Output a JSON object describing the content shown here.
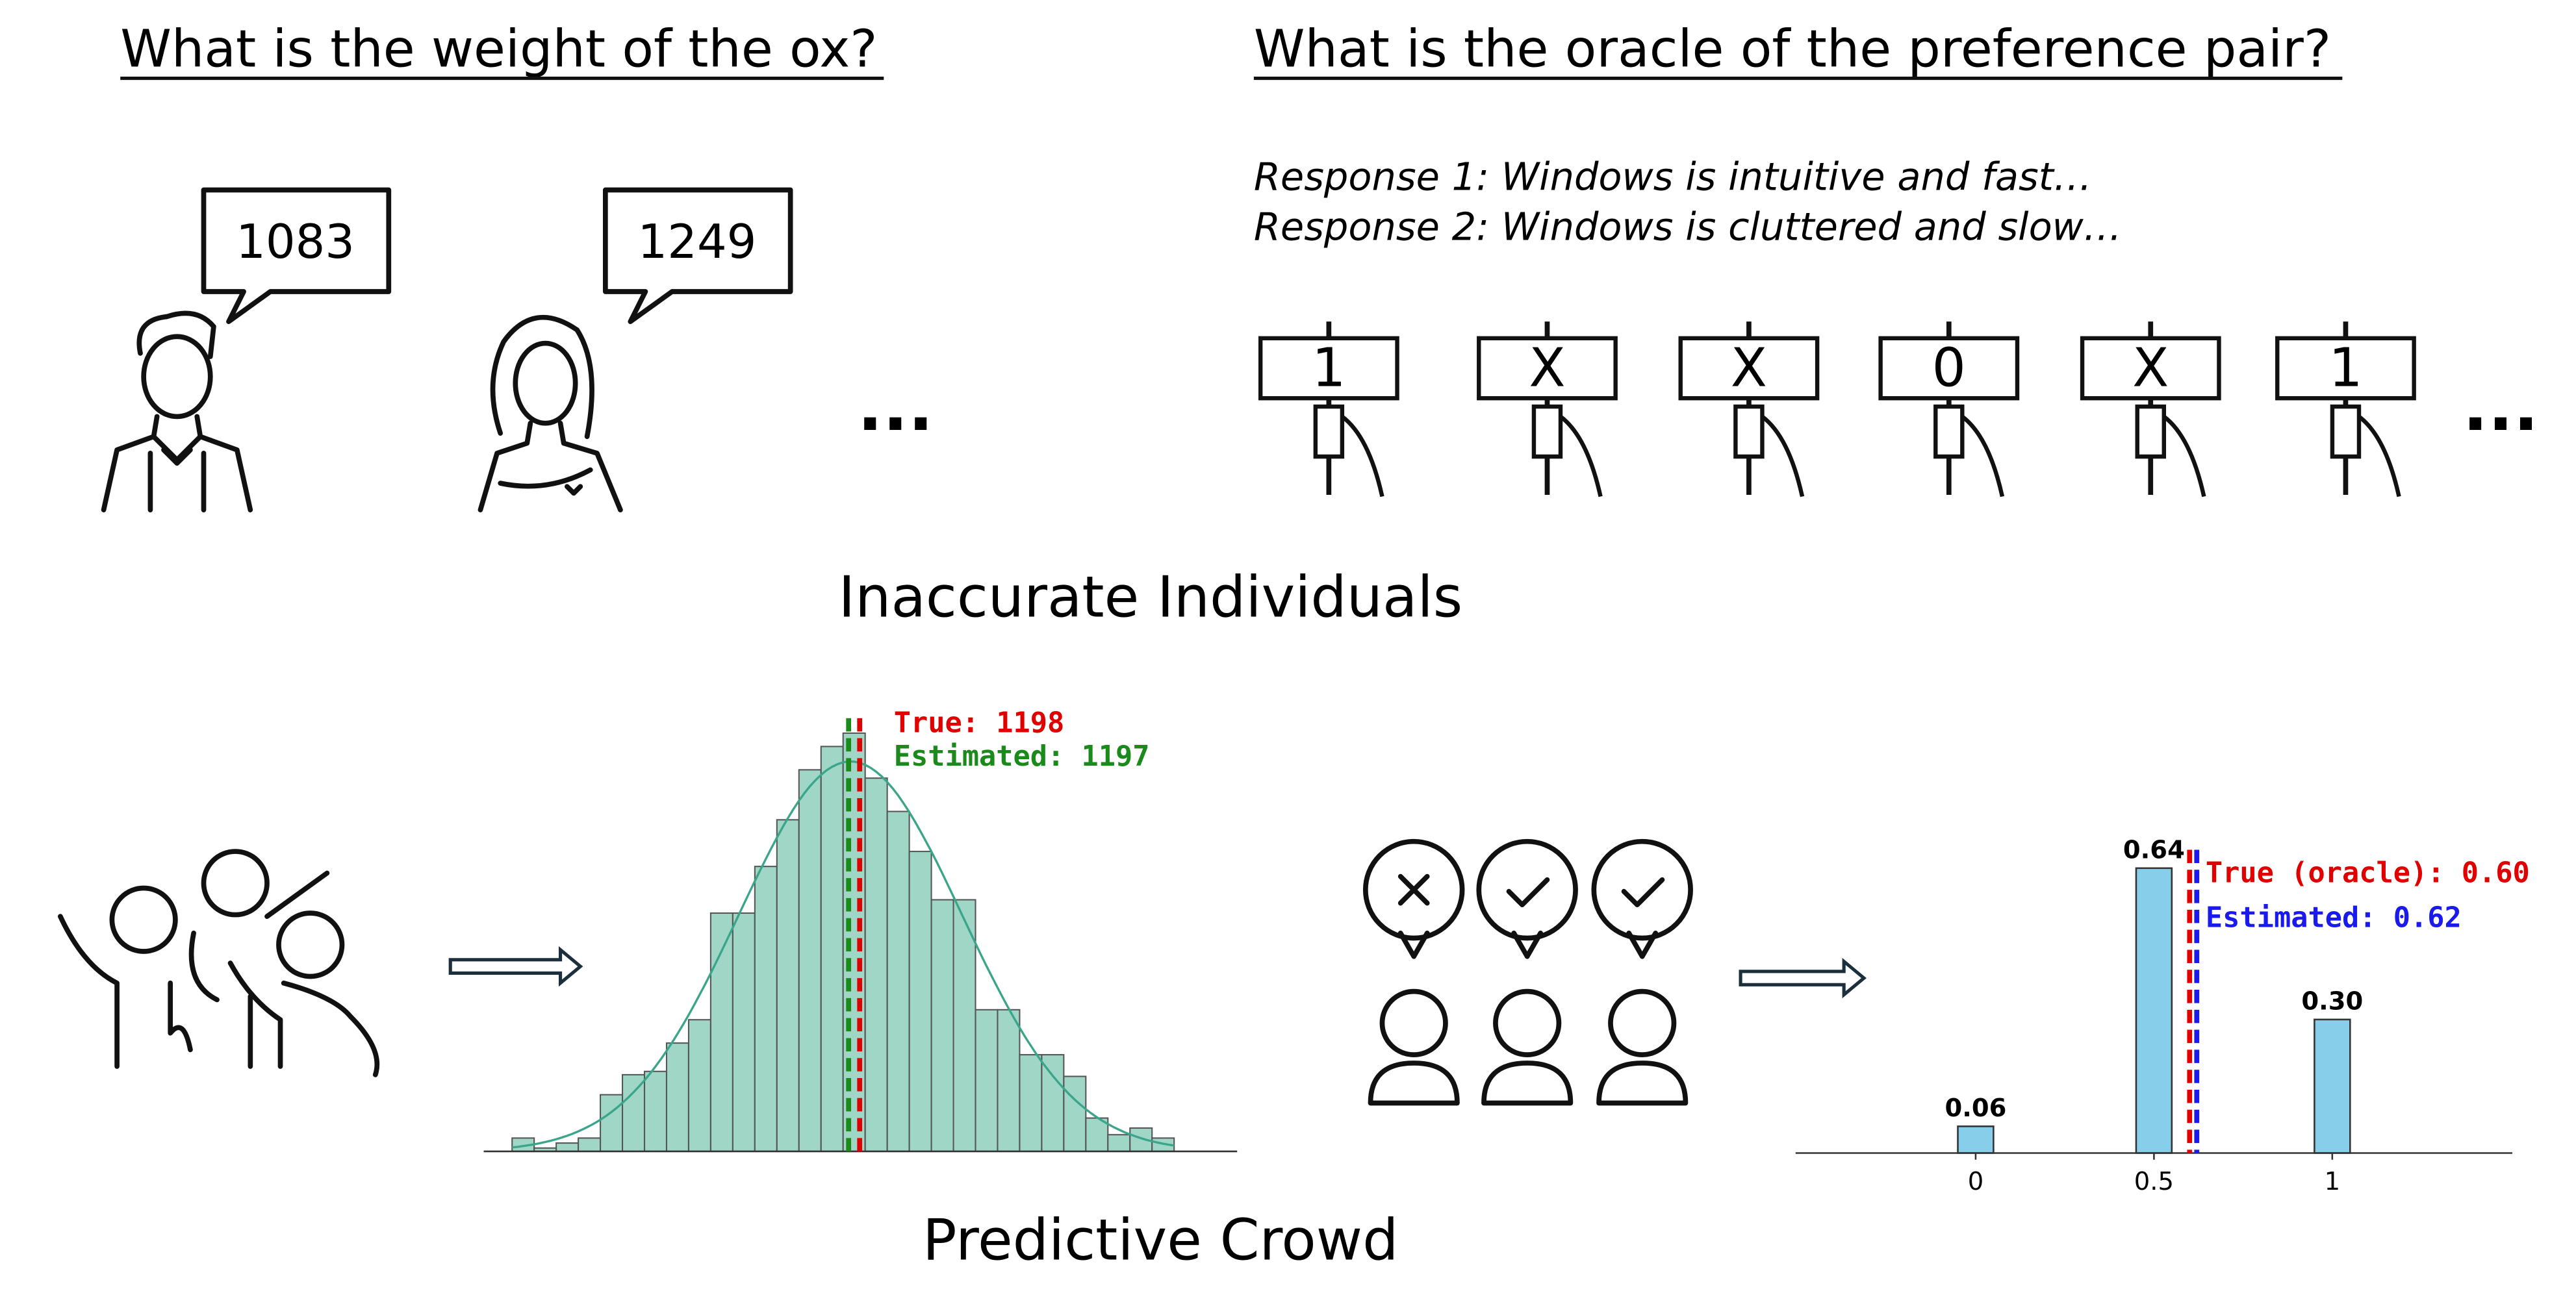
{
  "left_question": "What is the weight of the ox?",
  "right_question": "What is the oracle of the preference pair?",
  "speech_bubbles": [
    "1083",
    "1249"
  ],
  "responses": [
    "Response 1: Windows is intuitive and fast…",
    "Response 2: Windows is cluttered and slow…"
  ],
  "signs": [
    "1",
    "X",
    "X",
    "0",
    "X",
    "1"
  ],
  "ellipses": [
    "...",
    "..."
  ],
  "section_labels": {
    "individuals": "Inaccurate Individuals",
    "crowd": "Predictive Crowd"
  },
  "chart_data": [
    {
      "type": "histogram",
      "bins": [
        872,
        893,
        914,
        935,
        956,
        977,
        998,
        1019,
        1040,
        1061,
        1082,
        1103,
        1124,
        1145,
        1166,
        1187,
        1208,
        1229,
        1250,
        1271,
        1292,
        1313,
        1334,
        1355,
        1376,
        1397,
        1418,
        1439,
        1460,
        1481,
        1502
      ],
      "counts": [
        8,
        2,
        5,
        8,
        34,
        46,
        48,
        65,
        79,
        143,
        143,
        171,
        199,
        229,
        243,
        251,
        224,
        204,
        180,
        151,
        151,
        85,
        85,
        58,
        58,
        45,
        20,
        10,
        14,
        8
      ],
      "color": "#9fd6c6",
      "curve_color": "#3aa58a",
      "xlim": [
        845,
        1562
      ],
      "ylim": [
        0,
        260
      ],
      "reference_lines": [
        {
          "label": "True: 1198",
          "value": 1198,
          "color": "#e00000"
        },
        {
          "label": "Estimated: 1197",
          "value": 1197,
          "color": "#1a8a1a"
        }
      ]
    },
    {
      "type": "bar",
      "x": [
        0,
        0.5,
        1
      ],
      "values": [
        0.06,
        0.64,
        0.3
      ],
      "value_labels": [
        "0.06",
        "0.64",
        "0.30"
      ],
      "color": "#87ceeb",
      "bar_width": 0.1,
      "xlim": [
        -0.505,
        1.505
      ],
      "ylim": [
        0,
        0.7
      ],
      "xticks": [
        0,
        0.5,
        1
      ],
      "reference_lines": [
        {
          "label": "True (oracle): 0.60",
          "value": 0.6,
          "color": "#e00000"
        },
        {
          "label": "Estimated: 0.62",
          "value": 0.62,
          "color": "#1a1aee"
        }
      ]
    }
  ]
}
